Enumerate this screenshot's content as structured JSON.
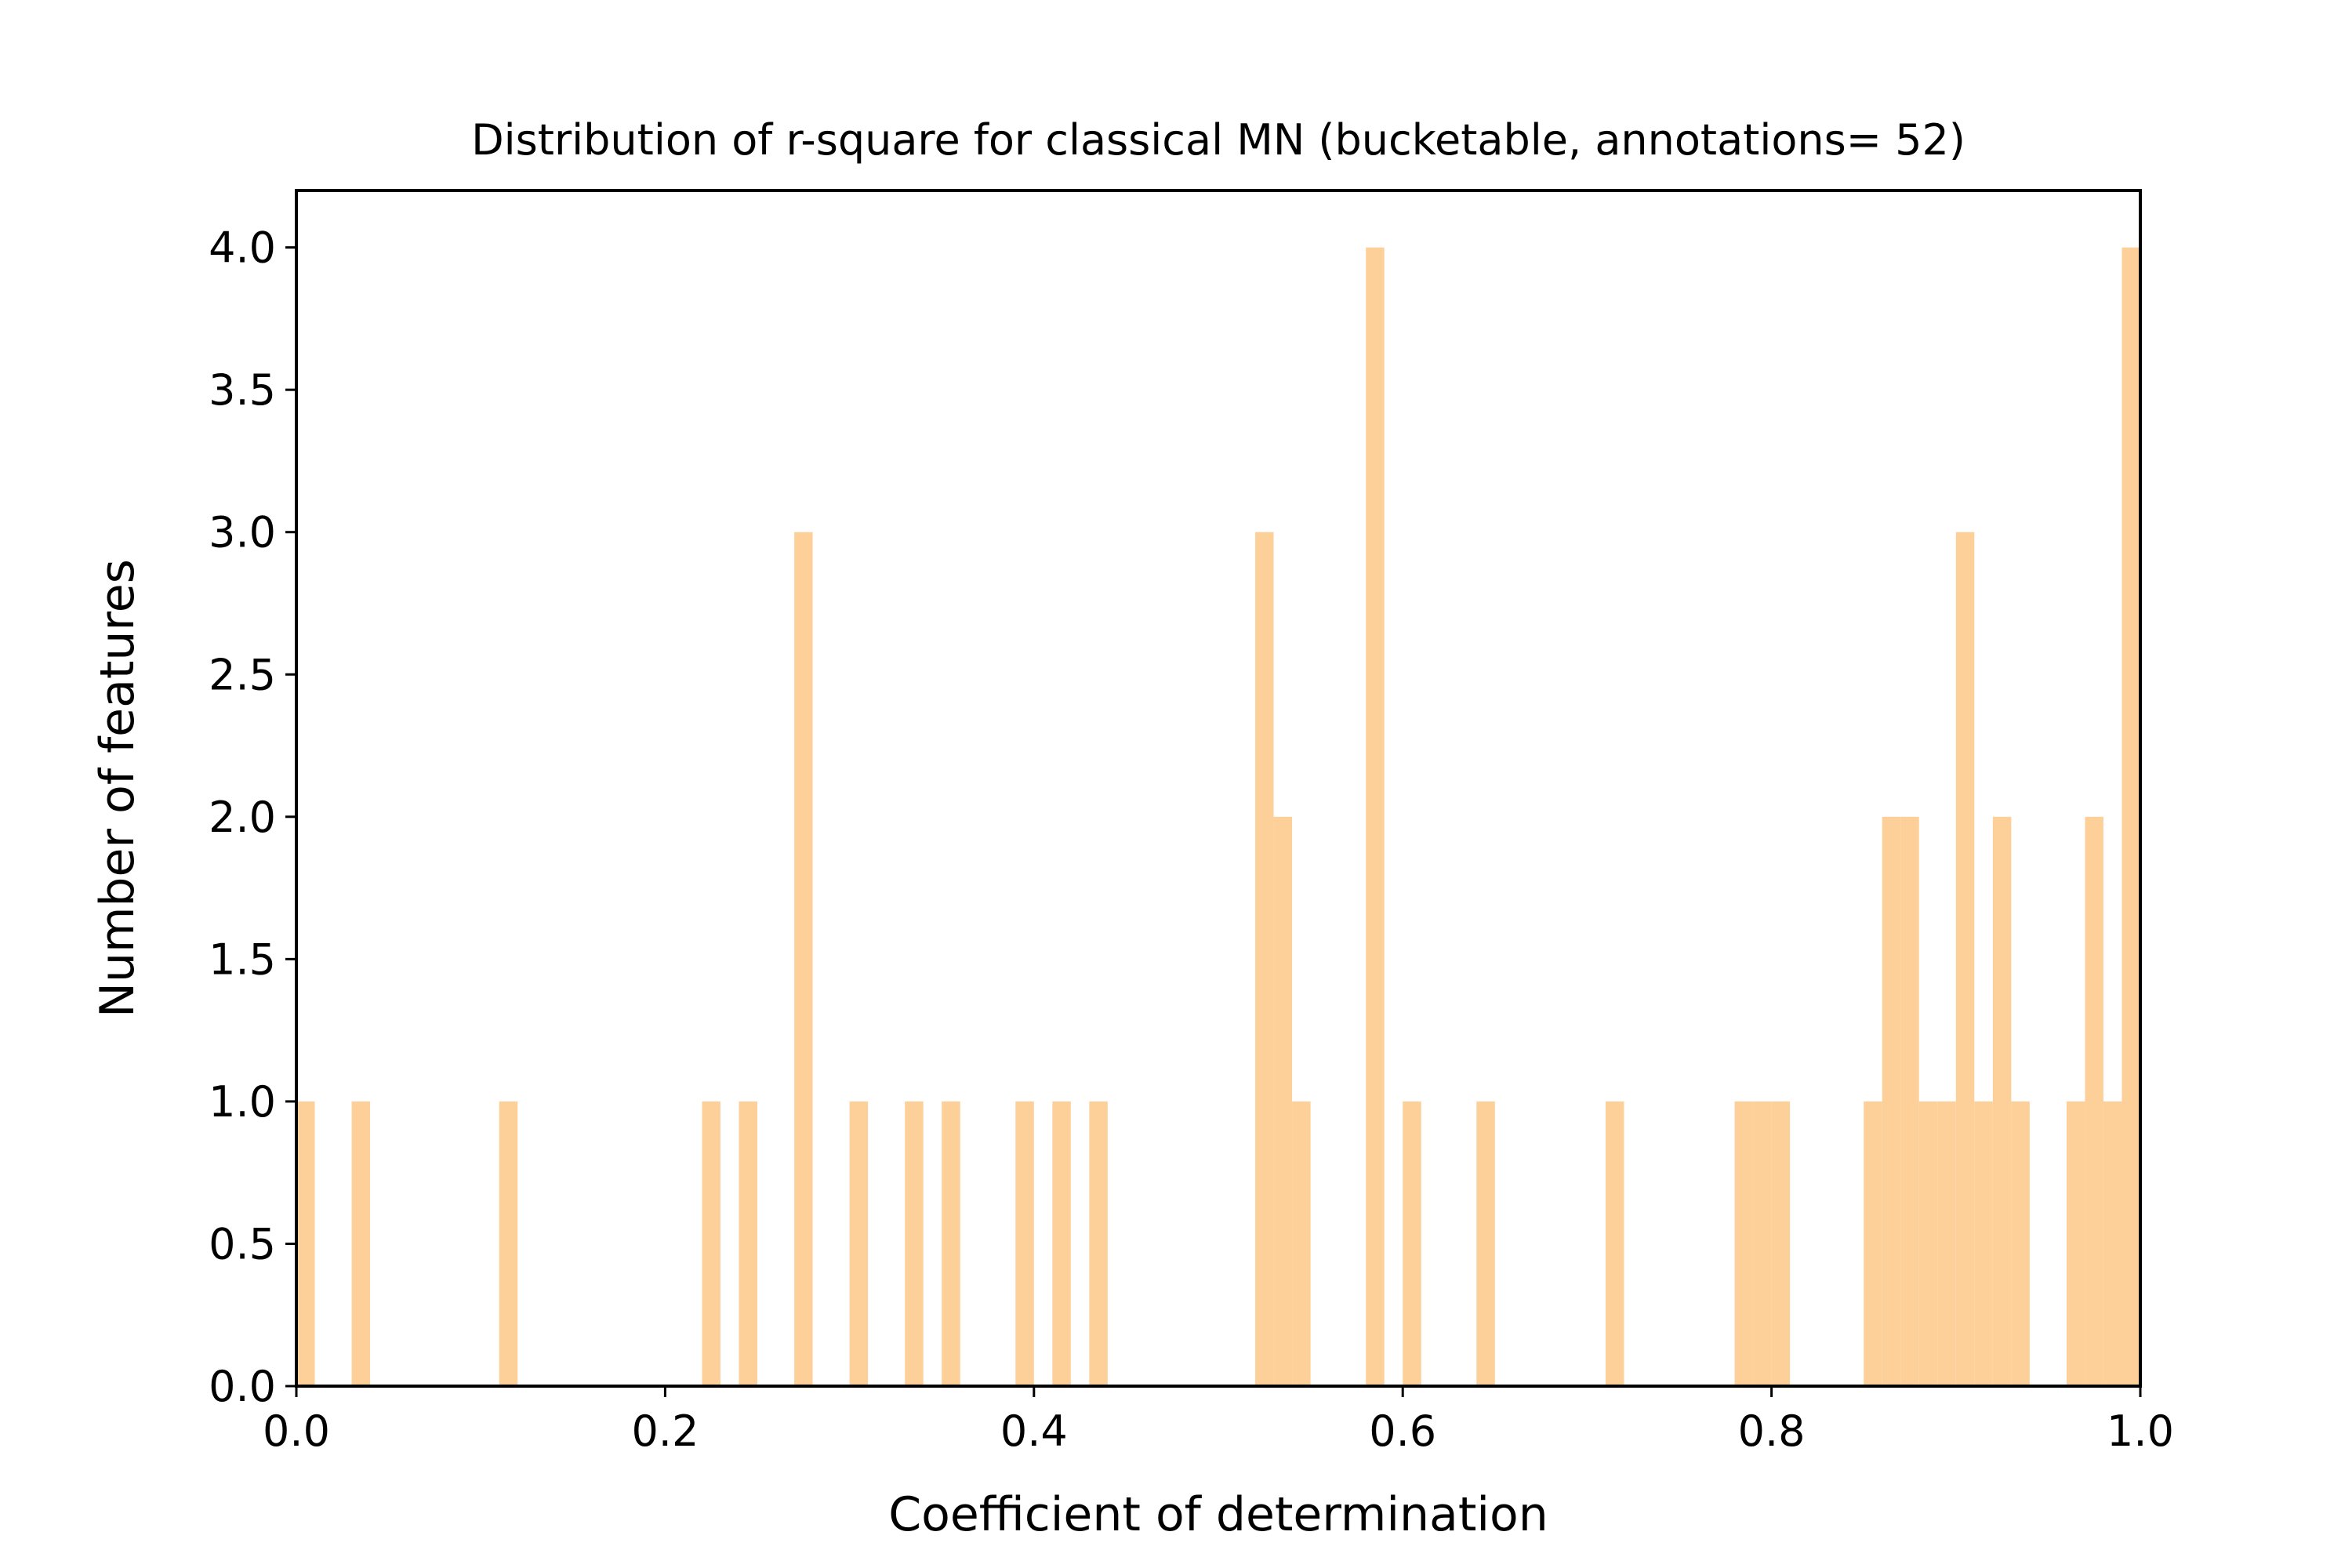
{
  "chart_data": {
    "type": "bar",
    "title": "Distribution of r-square for classical MN (bucketable, annotations= 52)",
    "xlabel": "Coefficient of determination",
    "ylabel": "Number of features",
    "xlim": [
      0,
      1
    ],
    "ylim": [
      0,
      4.2
    ],
    "grid": false,
    "legend": "none",
    "bar_color": "#fdd09a",
    "bin_width": 0.01,
    "xticks": [
      {
        "value": 0.0,
        "label": "0.0"
      },
      {
        "value": 0.2,
        "label": "0.2"
      },
      {
        "value": 0.4,
        "label": "0.4"
      },
      {
        "value": 0.6,
        "label": "0.6"
      },
      {
        "value": 0.8,
        "label": "0.8"
      },
      {
        "value": 1.0,
        "label": "1.0"
      }
    ],
    "yticks": [
      {
        "value": 0.0,
        "label": "0.0"
      },
      {
        "value": 0.5,
        "label": "0.5"
      },
      {
        "value": 1.0,
        "label": "1.0"
      },
      {
        "value": 1.5,
        "label": "1.5"
      },
      {
        "value": 2.0,
        "label": "2.0"
      },
      {
        "value": 2.5,
        "label": "2.5"
      },
      {
        "value": 3.0,
        "label": "3.0"
      },
      {
        "value": 3.5,
        "label": "3.5"
      },
      {
        "value": 4.0,
        "label": "4.0"
      }
    ],
    "bins": [
      {
        "x0": 0.0,
        "count": 1
      },
      {
        "x0": 0.03,
        "count": 1
      },
      {
        "x0": 0.11,
        "count": 1
      },
      {
        "x0": 0.22,
        "count": 1
      },
      {
        "x0": 0.24,
        "count": 1
      },
      {
        "x0": 0.27,
        "count": 3
      },
      {
        "x0": 0.3,
        "count": 1
      },
      {
        "x0": 0.33,
        "count": 1
      },
      {
        "x0": 0.35,
        "count": 1
      },
      {
        "x0": 0.39,
        "count": 1
      },
      {
        "x0": 0.41,
        "count": 1
      },
      {
        "x0": 0.43,
        "count": 1
      },
      {
        "x0": 0.52,
        "count": 3
      },
      {
        "x0": 0.53,
        "count": 2
      },
      {
        "x0": 0.54,
        "count": 1
      },
      {
        "x0": 0.58,
        "count": 4
      },
      {
        "x0": 0.6,
        "count": 1
      },
      {
        "x0": 0.64,
        "count": 1
      },
      {
        "x0": 0.71,
        "count": 1
      },
      {
        "x0": 0.78,
        "count": 1
      },
      {
        "x0": 0.79,
        "count": 1
      },
      {
        "x0": 0.8,
        "count": 1
      },
      {
        "x0": 0.85,
        "count": 1
      },
      {
        "x0": 0.86,
        "count": 2
      },
      {
        "x0": 0.87,
        "count": 2
      },
      {
        "x0": 0.88,
        "count": 1
      },
      {
        "x0": 0.89,
        "count": 1
      },
      {
        "x0": 0.9,
        "count": 3
      },
      {
        "x0": 0.91,
        "count": 1
      },
      {
        "x0": 0.92,
        "count": 2
      },
      {
        "x0": 0.93,
        "count": 1
      },
      {
        "x0": 0.96,
        "count": 1
      },
      {
        "x0": 0.97,
        "count": 2
      },
      {
        "x0": 0.98,
        "count": 1
      },
      {
        "x0": 0.99,
        "count": 4
      }
    ]
  }
}
